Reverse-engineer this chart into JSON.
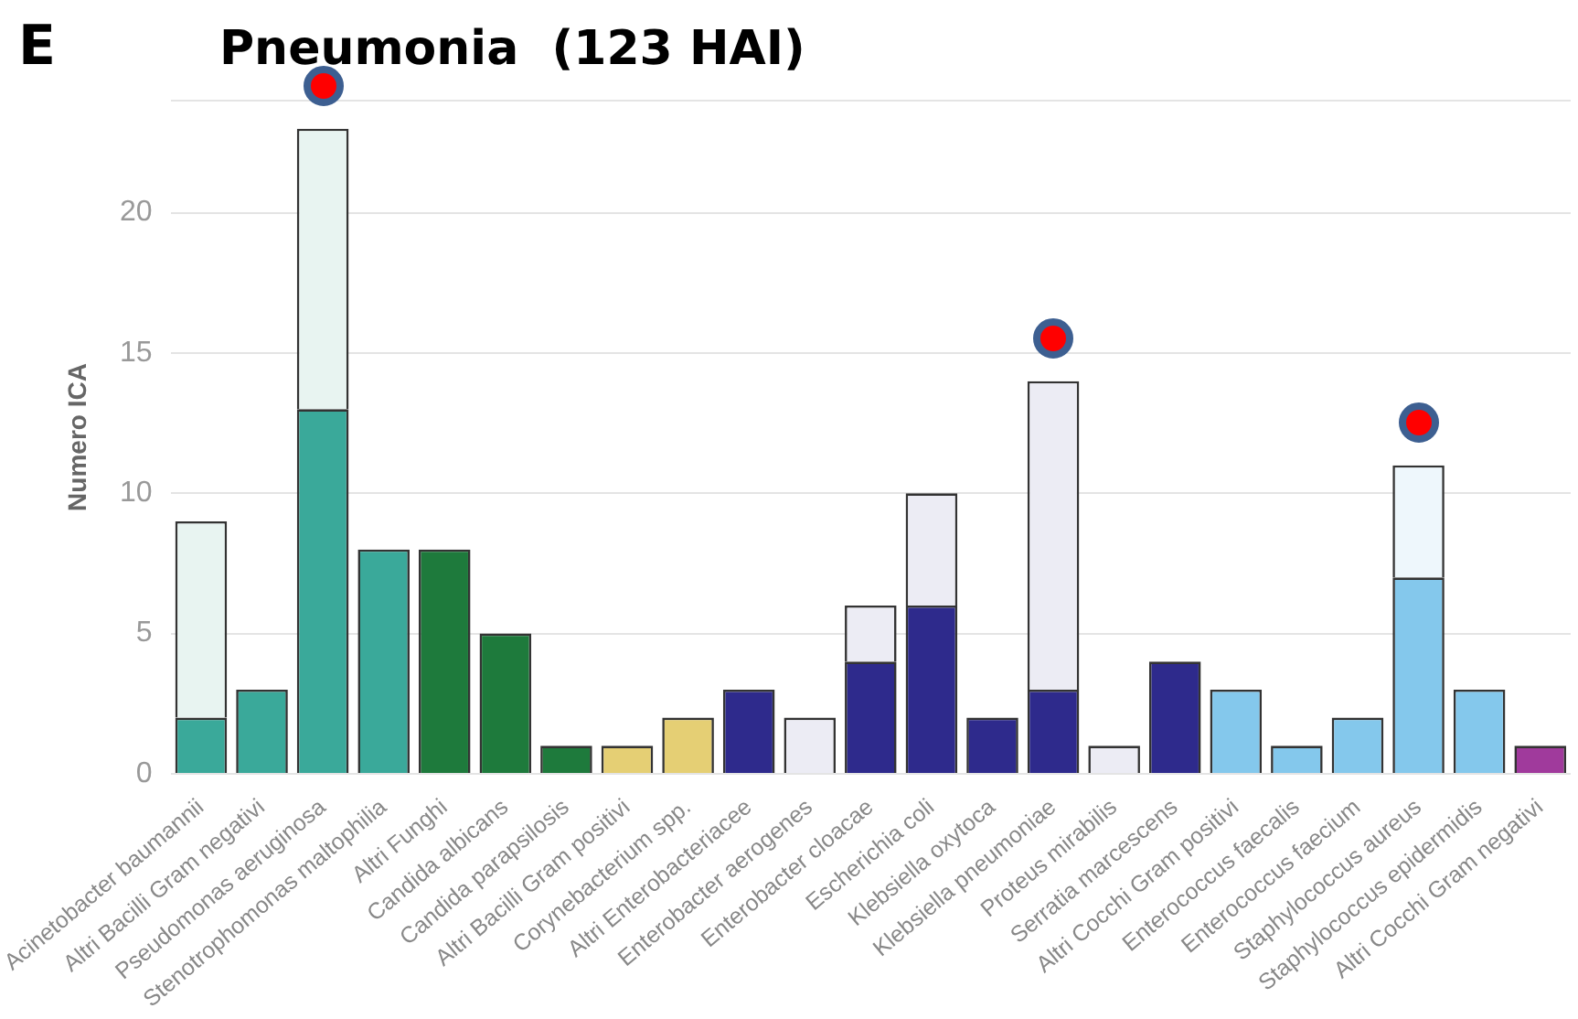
{
  "chart_data": {
    "type": "bar",
    "title": "Pneumonia  (123 HAI)",
    "annotations": [
      "E"
    ],
    "ylabel": "Numero ICA",
    "categories": [
      "Acinetobacter baumannii",
      "Altri Bacilli Gram negativi",
      "Pseudomonas aeruginosa",
      "Stenotrophomonas maltophilia",
      "Altri Funghi",
      "Candida albicans",
      "Candida parapsilosis",
      "Altri Bacilli Gram positivi",
      "Corynebacterium spp.",
      "Altri Enterobacteriacee",
      "Enterobacter aerogenes",
      "Enterobacter cloacae",
      "Escherichia coli",
      "Klebsiella oxytoca",
      "Klebsiella pneumoniae",
      "Proteus mirabilis",
      "Serratia marcescens",
      "Altri Cocchi Gram positivi",
      "Enterococcus faecalis",
      "Enterococcus faecium",
      "Staphylococcus aureus",
      "Staphylococcus epidermidis",
      "Altri Cocchi Gram negativi"
    ],
    "stacked": true,
    "series": [
      {
        "values": [
          2,
          3,
          13,
          8,
          8,
          5,
          1,
          1,
          2,
          3,
          2,
          4,
          6,
          2,
          3,
          1,
          4,
          3,
          1,
          2,
          7,
          3,
          1
        ],
        "colors": [
          "#3aa99a",
          "#3aa99a",
          "#3aa99a",
          "#3aa99a",
          "#1e7a3c",
          "#1e7a3c",
          "#1e7a3c",
          "#e5cf74",
          "#e5cf74",
          "#2e2a8c",
          "#ececf4",
          "#2e2a8c",
          "#2e2a8c",
          "#2e2a8c",
          "#2e2a8c",
          "#ececf4",
          "#2e2a8c",
          "#84c8ec",
          "#84c8ec",
          "#84c8ec",
          "#84c8ec",
          "#84c8ec",
          "#a03a9c"
        ]
      },
      {
        "values": [
          7,
          null,
          10,
          null,
          null,
          null,
          null,
          null,
          null,
          null,
          null,
          2,
          4,
          null,
          11,
          null,
          null,
          null,
          null,
          null,
          4,
          null,
          null
        ],
        "colors": [
          "#e8f4f1",
          "#e8f4f1",
          "#e8f4f1",
          "#e8f4f1",
          "#e8f4f1",
          "#e8f4f1",
          "#e8f4f1",
          "#e8f4f1",
          "#e8f4f1",
          "#ececf4",
          "#ececf4",
          "#ececf4",
          "#ececf4",
          "#ececf4",
          "#ececf4",
          "#ececf4",
          "#ececf4",
          "#eef7fc",
          "#eef7fc",
          "#eef7fc",
          "#eef7fc",
          "#eef7fc",
          "#eef7fc"
        ]
      }
    ],
    "ylim": [
      0,
      24
    ],
    "yticks": [
      0,
      5,
      10,
      15,
      20,
      {
        "value": 24,
        "label": null
      }
    ],
    "grid": "y",
    "legend": false
  }
}
